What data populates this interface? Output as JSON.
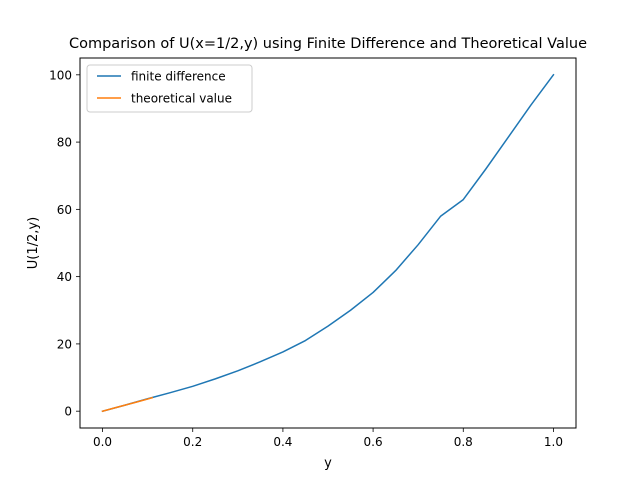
{
  "chart_data": {
    "type": "line",
    "title": "Comparison of U(x=1/2,y) using Finite Difference and Theoretical Value",
    "xlabel": "y",
    "ylabel": "U(1/2,y)",
    "xlim": [
      -0.05,
      1.05
    ],
    "ylim": [
      -5,
      105
    ],
    "x_ticks": [
      0.0,
      0.2,
      0.4,
      0.6,
      0.8,
      1.0
    ],
    "x_tick_labels": [
      "0.0",
      "0.2",
      "0.4",
      "0.6",
      "0.8",
      "1.0"
    ],
    "y_ticks": [
      0,
      20,
      40,
      60,
      80,
      100
    ],
    "y_tick_labels": [
      "0",
      "20",
      "40",
      "60",
      "80",
      "100"
    ],
    "grid": false,
    "legend_position": "top-left",
    "series": [
      {
        "name": "finite difference",
        "color": "#1f77b4",
        "x": [
          0.0,
          0.05,
          0.1,
          0.15,
          0.2,
          0.25,
          0.3,
          0.35,
          0.4,
          0.45,
          0.5,
          0.55,
          0.6,
          0.65,
          0.7,
          0.75,
          0.8,
          0.85,
          0.9,
          0.95,
          1.0
        ],
        "y": [
          0.0,
          1.8,
          3.7,
          5.5,
          7.4,
          9.6,
          12.0,
          14.7,
          17.6,
          21.0,
          25.3,
          30.0,
          35.3,
          41.8,
          49.5,
          58.0,
          62.9,
          72.0,
          81.5,
          91.0,
          100.0
        ]
      },
      {
        "name": "theoretical value",
        "color": "#ff7f0e",
        "x": [
          0.0,
          0.025,
          0.05,
          0.075,
          0.1,
          0.11
        ],
        "y": [
          0.0,
          0.9,
          1.8,
          2.7,
          3.6,
          4.0
        ]
      }
    ]
  }
}
